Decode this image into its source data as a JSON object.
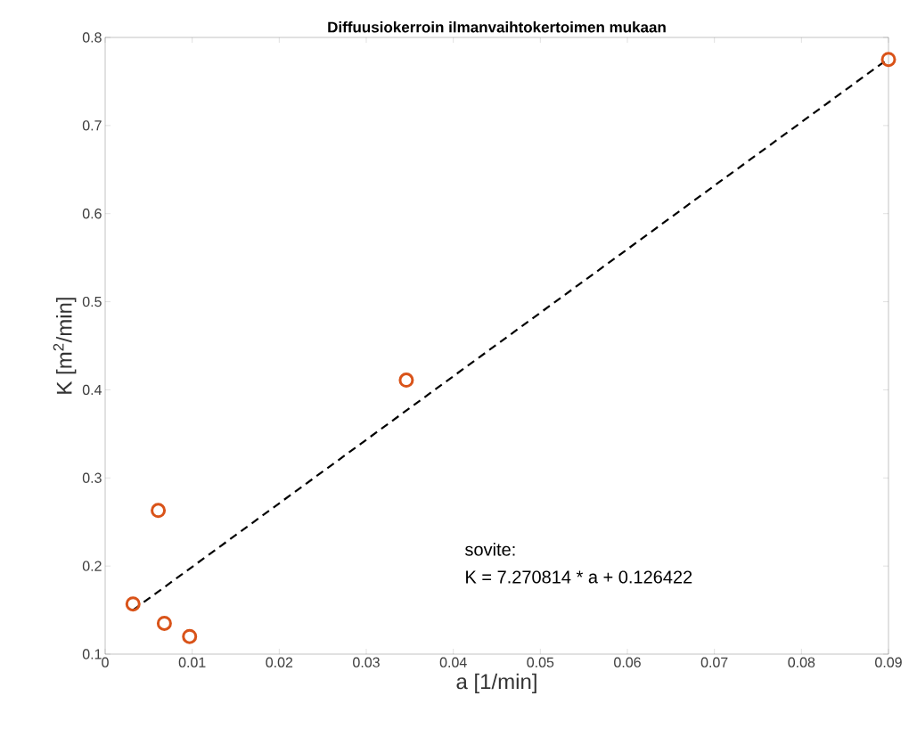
{
  "chart_data": {
    "type": "scatter",
    "title": "Diffuusiokerroin ilmanvaihtokertoimen mukaan",
    "xlabel": "a [1/min]",
    "ylabel": "K [m$^{2}$/min]",
    "xlim": [
      0,
      0.09
    ],
    "ylim": [
      0.1,
      0.8
    ],
    "xticks": [
      0,
      0.01,
      0.02,
      0.03,
      0.04,
      0.05,
      0.06,
      0.07,
      0.08,
      0.09
    ],
    "yticks": [
      0.1,
      0.2,
      0.3,
      0.4,
      0.5,
      0.6,
      0.7,
      0.8
    ],
    "grid": false,
    "series": [
      {
        "color": "#d95319",
        "marker": "circle",
        "x": [
          0.0032,
          0.0061,
          0.0068,
          0.0097,
          0.0346,
          0.09
        ],
        "values": [
          0.157,
          0.263,
          0.135,
          0.12,
          0.411,
          0.775
        ]
      },
      {
        "type": "line",
        "color": "#000000",
        "marker": "none",
        "line_style": "dashed",
        "x": [
          0.0032,
          0.09
        ],
        "values": [
          0.15,
          0.776
        ]
      }
    ],
    "annotations": [
      "sovite:",
      "K = 7.270814 * a + 0.126422"
    ]
  }
}
